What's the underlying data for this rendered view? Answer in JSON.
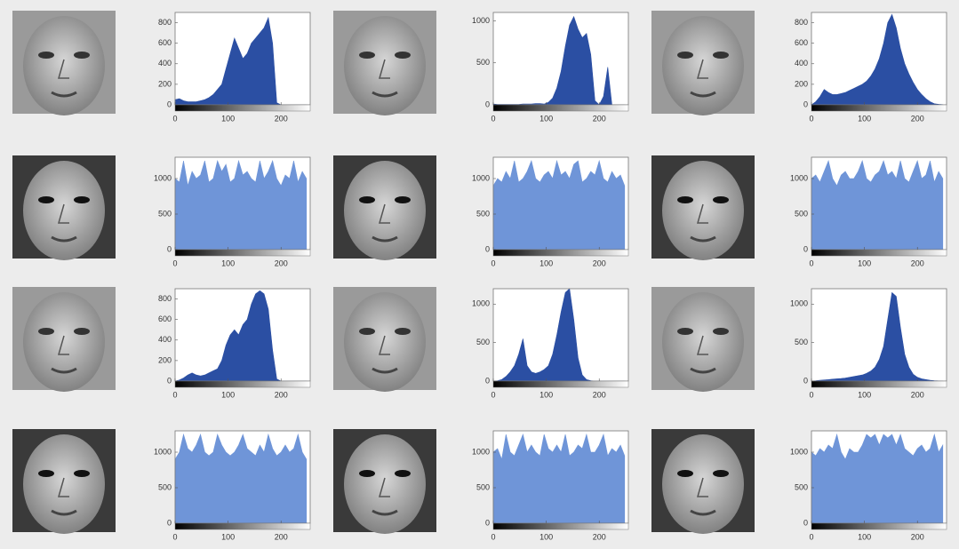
{
  "chart_data": [
    {
      "type": "area",
      "color": "#2b4fa3",
      "xlim": [
        0,
        255
      ],
      "ylim": [
        0,
        900
      ],
      "xticks": [
        0,
        100,
        200
      ],
      "yticks": [
        0,
        200,
        400,
        600,
        800
      ],
      "x": [
        0,
        8,
        16,
        24,
        32,
        40,
        48,
        56,
        64,
        72,
        80,
        88,
        96,
        104,
        112,
        120,
        128,
        136,
        144,
        152,
        160,
        168,
        176,
        184,
        192,
        200,
        208,
        216,
        224,
        232,
        240,
        248
      ],
      "values": [
        50,
        60,
        40,
        30,
        30,
        30,
        40,
        50,
        70,
        100,
        150,
        200,
        350,
        500,
        650,
        550,
        450,
        500,
        600,
        650,
        700,
        750,
        850,
        600,
        20,
        0,
        0,
        0,
        0,
        0,
        0,
        0
      ]
    },
    {
      "type": "area",
      "color": "#2b4fa3",
      "xlim": [
        0,
        255
      ],
      "ylim": [
        0,
        1100
      ],
      "xticks": [
        0,
        100,
        200
      ],
      "yticks": [
        0,
        500,
        1000
      ],
      "x": [
        0,
        8,
        16,
        24,
        32,
        40,
        48,
        56,
        64,
        72,
        80,
        88,
        96,
        104,
        112,
        120,
        128,
        136,
        144,
        152,
        160,
        168,
        176,
        184,
        192,
        200,
        208,
        216,
        224,
        232,
        240,
        248
      ],
      "values": [
        10,
        5,
        5,
        5,
        5,
        5,
        5,
        10,
        10,
        10,
        15,
        15,
        10,
        30,
        80,
        200,
        400,
        700,
        950,
        1050,
        900,
        800,
        850,
        600,
        50,
        0,
        100,
        450,
        0,
        0,
        0,
        0
      ]
    },
    {
      "type": "area",
      "color": "#2b4fa3",
      "xlim": [
        0,
        255
      ],
      "ylim": [
        0,
        900
      ],
      "xticks": [
        0,
        100,
        200
      ],
      "yticks": [
        0,
        200,
        400,
        600,
        800
      ],
      "x": [
        0,
        8,
        16,
        24,
        32,
        40,
        48,
        56,
        64,
        72,
        80,
        88,
        96,
        104,
        112,
        120,
        128,
        136,
        144,
        152,
        160,
        168,
        176,
        184,
        192,
        200,
        208,
        216,
        224,
        232,
        240,
        248
      ],
      "values": [
        0,
        30,
        80,
        150,
        120,
        100,
        100,
        110,
        120,
        140,
        160,
        180,
        200,
        230,
        280,
        350,
        450,
        600,
        800,
        880,
        750,
        550,
        400,
        300,
        220,
        150,
        100,
        60,
        30,
        10,
        5,
        2
      ]
    },
    {
      "type": "area",
      "color": "#6f95d8",
      "xlim": [
        0,
        255
      ],
      "ylim": [
        0,
        1300
      ],
      "xticks": [
        0,
        100,
        200
      ],
      "yticks": [
        0,
        500,
        1000
      ],
      "x": [
        0,
        8,
        16,
        24,
        32,
        40,
        48,
        56,
        64,
        72,
        80,
        88,
        96,
        104,
        112,
        120,
        128,
        136,
        144,
        152,
        160,
        168,
        176,
        184,
        192,
        200,
        208,
        216,
        224,
        232,
        240,
        248
      ],
      "values": [
        1000,
        950,
        1250,
        900,
        1100,
        1000,
        1050,
        1250,
        950,
        1000,
        1250,
        1100,
        1200,
        950,
        1000,
        1250,
        1050,
        1100,
        1000,
        950,
        1250,
        1000,
        1100,
        1250,
        1000,
        900,
        1050,
        1000,
        1250,
        950,
        1100,
        1000
      ]
    },
    {
      "type": "area",
      "color": "#6f95d8",
      "xlim": [
        0,
        255
      ],
      "ylim": [
        0,
        1300
      ],
      "xticks": [
        0,
        100,
        200
      ],
      "yticks": [
        0,
        500,
        1000
      ],
      "x": [
        0,
        8,
        16,
        24,
        32,
        40,
        48,
        56,
        64,
        72,
        80,
        88,
        96,
        104,
        112,
        120,
        128,
        136,
        144,
        152,
        160,
        168,
        176,
        184,
        192,
        200,
        208,
        216,
        224,
        232,
        240,
        248
      ],
      "values": [
        900,
        1000,
        950,
        1100,
        1000,
        1250,
        950,
        1000,
        1100,
        1250,
        1000,
        950,
        1050,
        1100,
        1000,
        1250,
        1050,
        1100,
        1000,
        1200,
        1250,
        950,
        1000,
        1100,
        1050,
        1250,
        1000,
        950,
        1100,
        1000,
        1050,
        900
      ]
    },
    {
      "type": "area",
      "color": "#6f95d8",
      "xlim": [
        0,
        255
      ],
      "ylim": [
        0,
        1300
      ],
      "xticks": [
        0,
        100,
        200
      ],
      "yticks": [
        0,
        500,
        1000
      ],
      "x": [
        0,
        8,
        16,
        24,
        32,
        40,
        48,
        56,
        64,
        72,
        80,
        88,
        96,
        104,
        112,
        120,
        128,
        136,
        144,
        152,
        160,
        168,
        176,
        184,
        192,
        200,
        208,
        216,
        224,
        232,
        240,
        248
      ],
      "values": [
        1000,
        1050,
        950,
        1100,
        1250,
        1000,
        900,
        1050,
        1100,
        1000,
        1000,
        1100,
        1250,
        1000,
        950,
        1050,
        1100,
        1250,
        1050,
        1100,
        1000,
        1250,
        1000,
        950,
        1100,
        1250,
        1000,
        1050,
        1250,
        950,
        1100,
        1000
      ]
    },
    {
      "type": "area",
      "color": "#2b4fa3",
      "xlim": [
        0,
        255
      ],
      "ylim": [
        0,
        900
      ],
      "xticks": [
        0,
        100,
        200
      ],
      "yticks": [
        0,
        200,
        400,
        600,
        800
      ],
      "x": [
        0,
        8,
        16,
        24,
        32,
        40,
        48,
        56,
        64,
        72,
        80,
        88,
        96,
        104,
        112,
        120,
        128,
        136,
        144,
        152,
        160,
        168,
        176,
        184,
        192,
        200,
        208,
        216,
        224,
        232,
        240,
        248
      ],
      "values": [
        0,
        10,
        30,
        60,
        80,
        60,
        50,
        60,
        80,
        100,
        120,
        200,
        350,
        450,
        500,
        450,
        550,
        600,
        750,
        850,
        880,
        850,
        700,
        300,
        20,
        0,
        0,
        0,
        0,
        0,
        0,
        0
      ]
    },
    {
      "type": "area",
      "color": "#2b4fa3",
      "xlim": [
        0,
        255
      ],
      "ylim": [
        0,
        1200
      ],
      "xticks": [
        0,
        100,
        200
      ],
      "yticks": [
        0,
        500,
        1000
      ],
      "x": [
        0,
        8,
        16,
        24,
        32,
        40,
        48,
        56,
        64,
        72,
        80,
        88,
        96,
        104,
        112,
        120,
        128,
        136,
        144,
        152,
        160,
        168,
        176,
        184,
        192,
        200,
        208,
        216,
        224,
        232,
        240,
        248
      ],
      "values": [
        0,
        5,
        20,
        60,
        120,
        200,
        350,
        550,
        200,
        120,
        100,
        120,
        150,
        200,
        350,
        600,
        900,
        1150,
        1200,
        800,
        300,
        80,
        20,
        5,
        0,
        0,
        0,
        0,
        0,
        0,
        0,
        0
      ]
    },
    {
      "type": "area",
      "color": "#2b4fa3",
      "xlim": [
        0,
        255
      ],
      "ylim": [
        0,
        1200
      ],
      "xticks": [
        0,
        100,
        200
      ],
      "yticks": [
        0,
        500,
        1000
      ],
      "x": [
        0,
        8,
        16,
        24,
        32,
        40,
        48,
        56,
        64,
        72,
        80,
        88,
        96,
        104,
        112,
        120,
        128,
        136,
        144,
        152,
        160,
        168,
        176,
        184,
        192,
        200,
        208,
        216,
        224,
        232,
        240,
        248
      ],
      "values": [
        0,
        5,
        10,
        15,
        20,
        25,
        30,
        35,
        40,
        50,
        60,
        70,
        80,
        100,
        130,
        180,
        280,
        450,
        800,
        1150,
        1100,
        700,
        350,
        180,
        90,
        50,
        30,
        20,
        10,
        5,
        2,
        0
      ]
    },
    {
      "type": "area",
      "color": "#6f95d8",
      "xlim": [
        0,
        255
      ],
      "ylim": [
        0,
        1300
      ],
      "xticks": [
        0,
        100,
        200
      ],
      "yticks": [
        0,
        500,
        1000
      ],
      "x": [
        0,
        8,
        16,
        24,
        32,
        40,
        48,
        56,
        64,
        72,
        80,
        88,
        96,
        104,
        112,
        120,
        128,
        136,
        144,
        152,
        160,
        168,
        176,
        184,
        192,
        200,
        208,
        216,
        224,
        232,
        240,
        248
      ],
      "values": [
        900,
        1000,
        1250,
        1050,
        1000,
        1100,
        1250,
        1000,
        950,
        1000,
        1250,
        1100,
        1000,
        950,
        1000,
        1100,
        1250,
        1050,
        1000,
        950,
        1100,
        1000,
        1250,
        1050,
        950,
        1000,
        1100,
        1000,
        1050,
        1250,
        1000,
        900
      ]
    },
    {
      "type": "area",
      "color": "#6f95d8",
      "xlim": [
        0,
        255
      ],
      "ylim": [
        0,
        1300
      ],
      "xticks": [
        0,
        100,
        200
      ],
      "yticks": [
        0,
        500,
        1000
      ],
      "x": [
        0,
        8,
        16,
        24,
        32,
        40,
        48,
        56,
        64,
        72,
        80,
        88,
        96,
        104,
        112,
        120,
        128,
        136,
        144,
        152,
        160,
        168,
        176,
        184,
        192,
        200,
        208,
        216,
        224,
        232,
        240,
        248
      ],
      "values": [
        1000,
        1050,
        900,
        1250,
        1000,
        950,
        1100,
        1250,
        1000,
        1100,
        1000,
        950,
        1250,
        1050,
        1000,
        1100,
        1000,
        1250,
        950,
        1000,
        1100,
        1050,
        1250,
        1000,
        1000,
        1100,
        1250,
        950,
        1050,
        1000,
        1100,
        950
      ]
    },
    {
      "type": "area",
      "color": "#6f95d8",
      "xlim": [
        0,
        255
      ],
      "ylim": [
        0,
        1300
      ],
      "xticks": [
        0,
        100,
        200
      ],
      "yticks": [
        0,
        500,
        1000
      ],
      "x": [
        0,
        8,
        16,
        24,
        32,
        40,
        48,
        56,
        64,
        72,
        80,
        88,
        96,
        104,
        112,
        120,
        128,
        136,
        144,
        152,
        160,
        168,
        176,
        184,
        192,
        200,
        208,
        216,
        224,
        232,
        240,
        248
      ],
      "values": [
        1000,
        950,
        1050,
        1000,
        1100,
        1050,
        1250,
        1000,
        900,
        1050,
        1000,
        1000,
        1100,
        1250,
        1200,
        1250,
        1100,
        1250,
        1200,
        1250,
        1100,
        1250,
        1050,
        1000,
        950,
        1050,
        1100,
        1000,
        1050,
        1250,
        1000,
        1100
      ]
    }
  ]
}
